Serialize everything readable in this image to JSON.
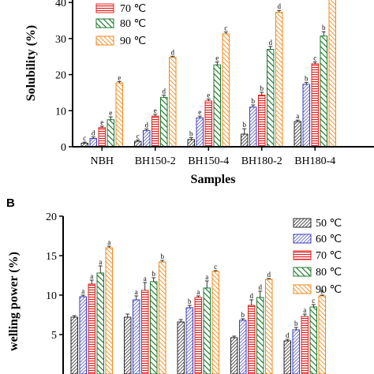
{
  "colors": {
    "50": "#2b2b2b",
    "60": "#3a3fbf",
    "70": "#e0201c",
    "80": "#1e7a2e",
    "90": "#f08a1c"
  },
  "chart_data": [
    {
      "panel": "",
      "type": "bar",
      "xlabel": "Samples",
      "ylabel": "Solubility (%)",
      "ylim": [
        0,
        42
      ],
      "yticks": [
        "0",
        "10",
        "20",
        "30",
        "40"
      ],
      "categories": [
        "NBH",
        "BH150-2",
        "BH150-4",
        "BH180-2",
        "BH180-4"
      ],
      "legend_placement": "top-left",
      "series": [
        {
          "name": "",
          "key": "50",
          "pattern": "diag",
          "values": [
            1.0,
            1.5,
            2.0,
            3.5,
            7.0
          ],
          "errors": [
            0.3,
            0.4,
            0.5,
            1.5,
            0.4
          ],
          "letters": [
            "c",
            "c",
            "b",
            "b",
            "a"
          ]
        },
        {
          "name": "",
          "key": "60",
          "pattern": "diag",
          "values": [
            2.3,
            4.5,
            8.0,
            11.0,
            17.3
          ],
          "errors": [
            0.4,
            0.4,
            0.5,
            0.6,
            0.5
          ],
          "letters": [
            "d",
            "d",
            "e",
            "b",
            "b"
          ]
        },
        {
          "name": "70 ℃",
          "key": "70",
          "pattern": "horiz",
          "values": [
            5.3,
            8.5,
            12.7,
            14.3,
            23.0
          ],
          "errors": [
            0.4,
            0.5,
            0.5,
            0.8,
            0.5
          ],
          "letters": [
            "e",
            "e",
            "e",
            "b",
            "c"
          ]
        },
        {
          "name": "80 ℃",
          "key": "80",
          "pattern": "diag",
          "values": [
            7.5,
            13.7,
            22.7,
            27.0,
            30.7
          ],
          "errors": [
            0.8,
            0.6,
            0.8,
            0.8,
            1.2
          ],
          "letters": [
            "e",
            "d",
            "e",
            "d",
            "b"
          ]
        },
        {
          "name": "90 ℃",
          "key": "90",
          "pattern": "diag",
          "values": [
            17.7,
            24.8,
            31.3,
            37.3,
            43.0
          ],
          "errors": [
            0.4,
            0.3,
            0.5,
            0.5,
            0.5
          ],
          "letters": [
            "e",
            "d",
            "c",
            "d",
            ""
          ]
        }
      ]
    },
    {
      "panel": "B",
      "type": "bar",
      "xlabel": "",
      "ylabel": "welling power (%)",
      "ylim": [
        0,
        20
      ],
      "yticks": [
        "5",
        "10",
        "15",
        "20"
      ],
      "categories": [
        "",
        "",
        "",
        "",
        ""
      ],
      "legend_placement": "top-right",
      "series": [
        {
          "name": "50 ℃",
          "key": "50",
          "pattern": "diag",
          "values": [
            7.2,
            7.2,
            6.6,
            4.6,
            4.2
          ],
          "errors": [
            0.2,
            0.4,
            0.3,
            0.2,
            0.2
          ],
          "letters": [
            "",
            "",
            "",
            "",
            "d"
          ]
        },
        {
          "name": "60 ℃",
          "key": "60",
          "pattern": "diag",
          "values": [
            9.8,
            9.4,
            8.4,
            6.8,
            5.6
          ],
          "errors": [
            0.2,
            0.5,
            0.3,
            0.2,
            0.3
          ],
          "letters": [
            "a",
            "a",
            "b",
            "b",
            "b"
          ]
        },
        {
          "name": "70 ℃",
          "key": "70",
          "pattern": "horiz",
          "values": [
            11.4,
            10.6,
            9.7,
            8.7,
            7.3
          ],
          "errors": [
            0.5,
            1.0,
            0.2,
            0.7,
            0.3
          ],
          "letters": [
            "a",
            "a",
            "a",
            "d",
            "a"
          ]
        },
        {
          "name": "80 ℃",
          "key": "80",
          "pattern": "diag",
          "values": [
            12.8,
            11.7,
            10.9,
            9.7,
            8.5
          ],
          "errors": [
            0.9,
            0.5,
            0.9,
            0.8,
            0.3
          ],
          "letters": [
            "a",
            "b",
            "a",
            "d",
            "c"
          ]
        },
        {
          "name": "90 ℃",
          "key": "90",
          "pattern": "diag",
          "values": [
            16.0,
            14.2,
            13.0,
            12.0,
            9.9
          ],
          "errors": [
            0.2,
            0.2,
            0.1,
            0.1,
            0.1
          ],
          "letters": [
            "a",
            "b",
            "c",
            "d",
            "e"
          ]
        }
      ]
    }
  ]
}
